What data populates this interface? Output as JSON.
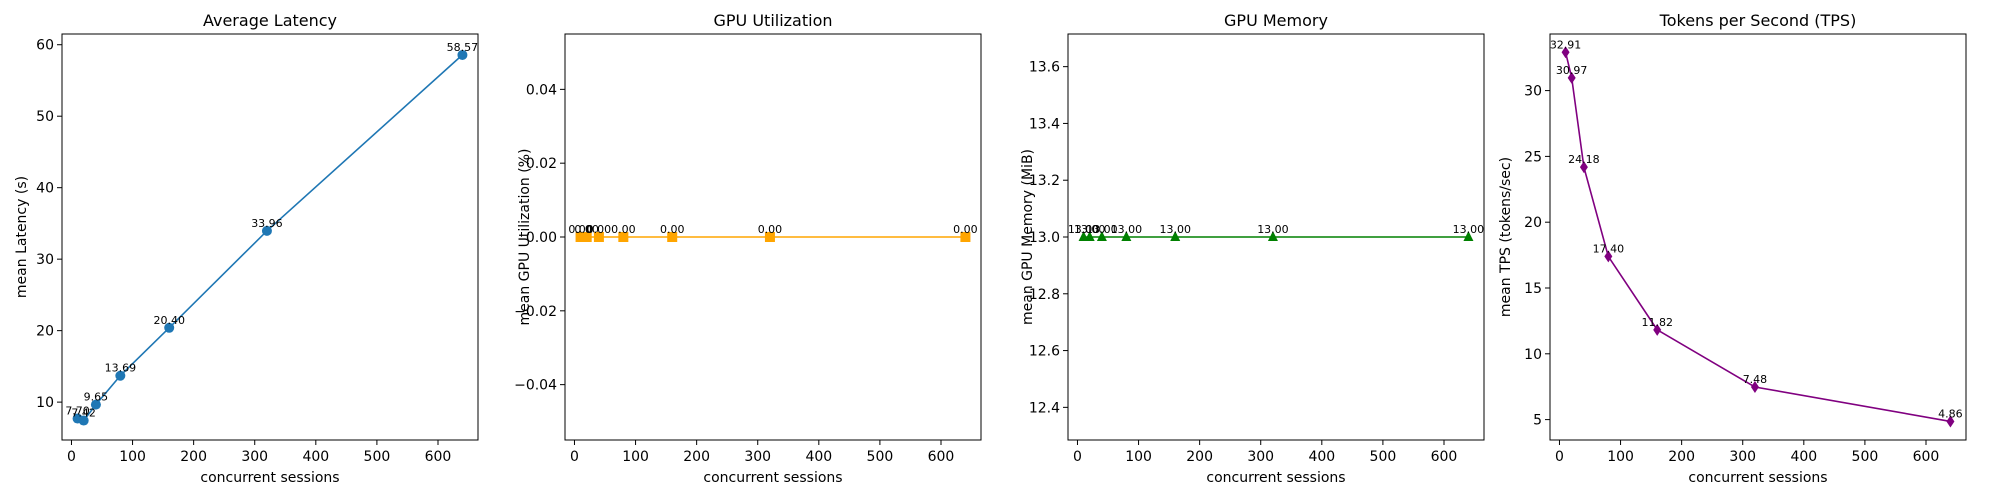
{
  "chart_data": [
    {
      "type": "line",
      "title": "Average Latency",
      "xlabel": "concurrent sessions",
      "ylabel": "mean Latency (s)",
      "color": "#1f77b4",
      "marker": "circle",
      "x": [
        10,
        20,
        40,
        80,
        160,
        320,
        640
      ],
      "values": [
        7.7,
        7.42,
        9.65,
        13.69,
        20.4,
        33.96,
        58.57
      ],
      "labels": [
        "7.70",
        "7.42",
        "9.65",
        "13.69",
        "20.40",
        "33.96",
        "58.57"
      ],
      "xlim": [
        -15.5,
        665.5
      ],
      "ylim": [
        4.7,
        61.5
      ],
      "xticks": [
        0,
        100,
        200,
        300,
        400,
        500,
        600
      ],
      "xtick_labels": [
        "0",
        "100",
        "200",
        "300",
        "400",
        "500",
        "600"
      ],
      "yticks": [
        10,
        20,
        30,
        40,
        50,
        60
      ],
      "ytick_labels": [
        "10",
        "20",
        "30",
        "40",
        "50",
        "60"
      ]
    },
    {
      "type": "line",
      "title": "GPU Utilization",
      "xlabel": "concurrent sessions",
      "ylabel": "mean GPU Utilization (%)",
      "color": "#ffa500",
      "marker": "square",
      "x": [
        10,
        20,
        40,
        80,
        160,
        320,
        640
      ],
      "values": [
        0,
        0,
        0,
        0,
        0,
        0,
        0
      ],
      "labels": [
        "0.00",
        "0.00",
        "0.00",
        "0.00",
        "0.00",
        "0.00",
        "0.00"
      ],
      "xlim": [
        -15.5,
        665.5
      ],
      "ylim": [
        -0.055,
        0.055
      ],
      "xticks": [
        0,
        100,
        200,
        300,
        400,
        500,
        600
      ],
      "xtick_labels": [
        "0",
        "100",
        "200",
        "300",
        "400",
        "500",
        "600"
      ],
      "yticks": [
        -0.04,
        -0.02,
        0.0,
        0.02,
        0.04
      ],
      "ytick_labels": [
        "−0.04",
        "−0.02",
        "0.00",
        "0.02",
        "0.04"
      ]
    },
    {
      "type": "line",
      "title": "GPU Memory",
      "xlabel": "concurrent sessions",
      "ylabel": "mean GPU Memory (MiB)",
      "color": "#008000",
      "marker": "triangle",
      "x": [
        10,
        20,
        40,
        80,
        160,
        320,
        640
      ],
      "values": [
        13,
        13,
        13,
        13,
        13,
        13,
        13
      ],
      "labels": [
        "13.00",
        "13.00",
        "13.00",
        "13.00",
        "13.00",
        "13.00",
        "13.00"
      ],
      "xlim": [
        -15.5,
        665.5
      ],
      "ylim": [
        12.285,
        13.715
      ],
      "xticks": [
        0,
        100,
        200,
        300,
        400,
        500,
        600
      ],
      "xtick_labels": [
        "0",
        "100",
        "200",
        "300",
        "400",
        "500",
        "600"
      ],
      "yticks": [
        12.4,
        12.6,
        12.8,
        13.0,
        13.2,
        13.4,
        13.6
      ],
      "ytick_labels": [
        "12.4",
        "12.6",
        "12.8",
        "13.0",
        "13.2",
        "13.4",
        "13.6"
      ]
    },
    {
      "type": "line",
      "title": "Tokens per Second (TPS)",
      "xlabel": "concurrent sessions",
      "ylabel": "mean TPS (tokens/sec)",
      "color": "#800080",
      "marker": "diamond",
      "x": [
        10,
        20,
        40,
        80,
        160,
        320,
        640
      ],
      "values": [
        32.91,
        30.97,
        24.18,
        17.4,
        11.82,
        7.48,
        4.86
      ],
      "labels": [
        "32.91",
        "30.97",
        "24.18",
        "17.40",
        "11.82",
        "7.48",
        "4.86"
      ],
      "xlim": [
        -15.5,
        665.5
      ],
      "ylim": [
        3.45,
        34.3
      ],
      "xticks": [
        0,
        100,
        200,
        300,
        400,
        500,
        600
      ],
      "xtick_labels": [
        "0",
        "100",
        "200",
        "300",
        "400",
        "500",
        "600"
      ],
      "yticks": [
        5,
        10,
        15,
        20,
        25,
        30
      ],
      "ytick_labels": [
        "5",
        "10",
        "15",
        "20",
        "25",
        "30"
      ]
    }
  ]
}
